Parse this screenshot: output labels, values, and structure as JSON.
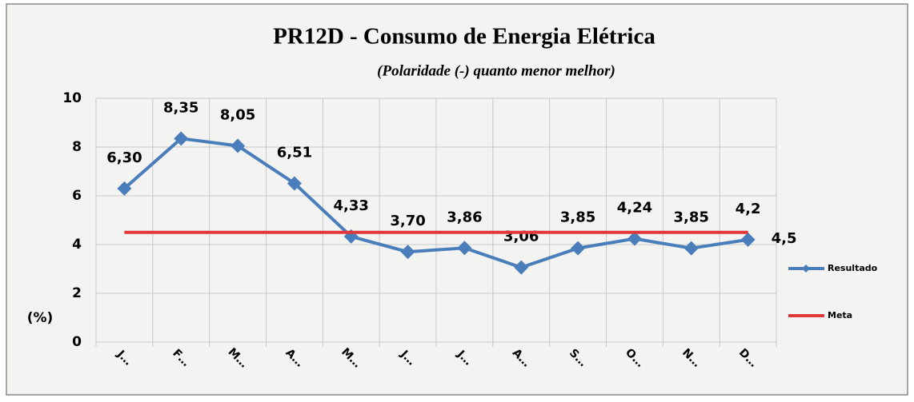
{
  "chart_data": {
    "type": "line",
    "title": "PR12D - Consumo de Energia Elétrica",
    "subtitle": "(Polaridade (-) quanto menor melhor)",
    "y_label": "(%)",
    "categories": [
      "J…",
      "F…",
      "M…",
      "A…",
      "M…",
      "J…",
      "J…",
      "A…",
      "S…",
      "O…",
      "N…",
      "D…"
    ],
    "series": [
      {
        "name": "Resultado",
        "color": "#4a7ebb",
        "marker": "diamond",
        "values": [
          6.3,
          8.35,
          8.05,
          6.51,
          4.33,
          3.7,
          3.86,
          3.06,
          3.85,
          4.24,
          3.85,
          4.2
        ],
        "value_labels": [
          "6,30",
          "8,35",
          "8,05",
          "6,51",
          "4,33",
          "3,70",
          "3,86",
          "3,06",
          "3,85",
          "4,24",
          "3,85",
          "4,2"
        ]
      },
      {
        "name": "Meta",
        "color": "#e0383a",
        "values": [
          4.5,
          4.5,
          4.5,
          4.5,
          4.5,
          4.5,
          4.5,
          4.5,
          4.5,
          4.5,
          4.5,
          4.5
        ],
        "value_labels": [
          null,
          null,
          null,
          null,
          null,
          null,
          null,
          null,
          null,
          null,
          null,
          "4,5"
        ]
      }
    ],
    "ylim": [
      0,
      10
    ],
    "yticks": [
      0,
      2,
      4,
      6,
      8,
      10
    ],
    "grid": true,
    "legend": "right"
  }
}
